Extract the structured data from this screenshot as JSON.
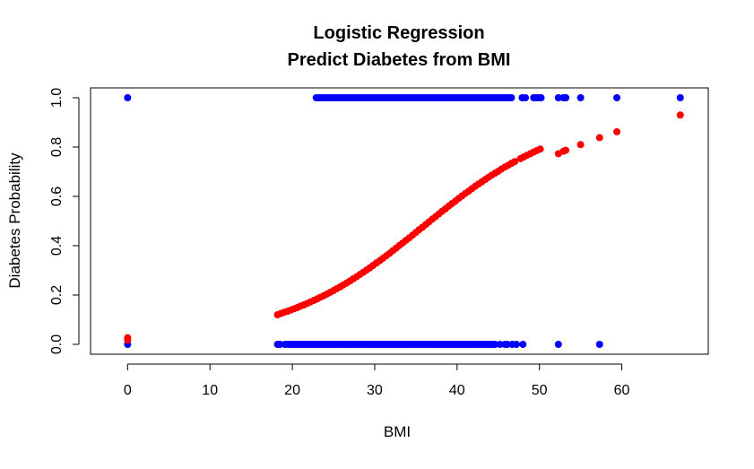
{
  "chart_data": {
    "type": "scatter",
    "title": "Logistic Regression",
    "subtitle": "Predict Diabetes from BMI",
    "xlabel": "BMI",
    "ylabel": "Diabetes Probability",
    "xlim": [
      -4.5,
      70.5
    ],
    "ylim": [
      -0.04,
      1.04
    ],
    "x_ticks": [
      0,
      10,
      20,
      30,
      40,
      50,
      60
    ],
    "x_tick_labels": [
      "0",
      "10",
      "20",
      "30",
      "40",
      "50",
      "60"
    ],
    "y_ticks": [
      0.0,
      0.2,
      0.4,
      0.6,
      0.8,
      1.0
    ],
    "y_tick_labels": [
      "0.0",
      "0.2",
      "0.4",
      "0.6",
      "0.8",
      "1.0"
    ],
    "grid": false,
    "legend": "none",
    "series": [
      {
        "color": "#0000ff",
        "x": [
          0,
          22.9,
          23.2,
          23.5,
          23.8,
          24.1,
          24.4,
          24.7,
          25.0,
          25.3,
          25.6,
          25.9,
          26.2,
          26.5,
          26.8,
          27.1,
          27.4,
          27.7,
          28.0,
          28.3,
          28.6,
          28.9,
          29.2,
          29.5,
          29.8,
          30.1,
          30.4,
          30.7,
          31.0,
          31.3,
          31.6,
          31.9,
          32.2,
          32.5,
          32.8,
          33.1,
          33.4,
          33.7,
          34.0,
          34.3,
          34.6,
          34.9,
          35.2,
          35.5,
          35.8,
          36.1,
          36.4,
          36.7,
          37.0,
          37.3,
          37.6,
          37.9,
          38.2,
          38.5,
          38.8,
          39.1,
          39.4,
          39.7,
          40.0,
          40.3,
          40.6,
          40.9,
          41.2,
          41.5,
          41.8,
          42.1,
          42.4,
          42.7,
          43.0,
          43.3,
          43.6,
          43.9,
          44.2,
          44.5,
          44.8,
          45.1,
          45.4,
          45.7,
          46.0,
          46.3,
          46.6,
          47.9,
          48.3,
          49.3,
          49.6,
          49.9,
          50.2,
          52.3,
          52.9,
          53.2,
          55.0,
          59.4,
          67.1
        ],
        "y": [
          1,
          1,
          1,
          1,
          1,
          1,
          1,
          1,
          1,
          1,
          1,
          1,
          1,
          1,
          1,
          1,
          1,
          1,
          1,
          1,
          1,
          1,
          1,
          1,
          1,
          1,
          1,
          1,
          1,
          1,
          1,
          1,
          1,
          1,
          1,
          1,
          1,
          1,
          1,
          1,
          1,
          1,
          1,
          1,
          1,
          1,
          1,
          1,
          1,
          1,
          1,
          1,
          1,
          1,
          1,
          1,
          1,
          1,
          1,
          1,
          1,
          1,
          1,
          1,
          1,
          1,
          1,
          1,
          1,
          1,
          1,
          1,
          1,
          1,
          1,
          1,
          1,
          1,
          1,
          1,
          1,
          1,
          1,
          1,
          1,
          1,
          1,
          1,
          1,
          1,
          1,
          1,
          1
        ]
      },
      {
        "color": "#0000ff",
        "x": [
          0,
          18.2,
          18.5,
          19.1,
          19.4,
          19.7,
          20.0,
          20.3,
          20.6,
          20.9,
          21.2,
          21.5,
          21.8,
          22.1,
          22.4,
          22.7,
          23.0,
          23.3,
          23.6,
          23.9,
          24.2,
          24.5,
          24.8,
          25.1,
          25.4,
          25.7,
          26.0,
          26.3,
          26.6,
          26.9,
          27.2,
          27.5,
          27.8,
          28.1,
          28.4,
          28.7,
          29.0,
          29.3,
          29.6,
          29.9,
          30.2,
          30.5,
          30.8,
          31.1,
          31.4,
          31.7,
          32.0,
          32.3,
          32.6,
          32.9,
          33.2,
          33.5,
          33.8,
          34.1,
          34.4,
          34.7,
          35.0,
          35.3,
          35.6,
          35.9,
          36.2,
          36.5,
          36.8,
          37.1,
          37.4,
          37.7,
          38.0,
          38.3,
          38.6,
          38.9,
          39.2,
          39.5,
          39.8,
          40.1,
          40.4,
          40.7,
          41.0,
          41.3,
          41.6,
          41.9,
          42.2,
          42.5,
          42.8,
          43.1,
          43.4,
          43.7,
          44.0,
          44.3,
          44.6,
          45.2,
          45.8,
          46.1,
          46.7,
          47.2,
          48.0,
          52.3,
          57.3
        ],
        "y": [
          0,
          0,
          0,
          0,
          0,
          0,
          0,
          0,
          0,
          0,
          0,
          0,
          0,
          0,
          0,
          0,
          0,
          0,
          0,
          0,
          0,
          0,
          0,
          0,
          0,
          0,
          0,
          0,
          0,
          0,
          0,
          0,
          0,
          0,
          0,
          0,
          0,
          0,
          0,
          0,
          0,
          0,
          0,
          0,
          0,
          0,
          0,
          0,
          0,
          0,
          0,
          0,
          0,
          0,
          0,
          0,
          0,
          0,
          0,
          0,
          0,
          0,
          0,
          0,
          0,
          0,
          0,
          0,
          0,
          0,
          0,
          0,
          0,
          0,
          0,
          0,
          0,
          0,
          0,
          0,
          0,
          0,
          0,
          0,
          0,
          0,
          0,
          0,
          0,
          0,
          0,
          0,
          0,
          0,
          0,
          0,
          0
        ]
      },
      {
        "color": "#ff0000",
        "x": [
          0,
          0,
          18.2,
          18.6,
          19.0,
          19.4,
          19.8,
          20.2,
          20.6,
          21.0,
          21.4,
          21.8,
          22.2,
          22.6,
          23.0,
          23.4,
          23.8,
          24.2,
          24.6,
          25.0,
          25.4,
          25.8,
          26.2,
          26.6,
          27.0,
          27.4,
          27.8,
          28.2,
          28.6,
          29.0,
          29.4,
          29.8,
          30.2,
          30.6,
          31.0,
          31.4,
          31.8,
          32.2,
          32.6,
          33.0,
          33.4,
          33.8,
          34.2,
          34.6,
          35.0,
          35.4,
          35.8,
          36.2,
          36.6,
          37.0,
          37.4,
          37.8,
          38.2,
          38.6,
          39.0,
          39.4,
          39.8,
          40.2,
          40.6,
          41.0,
          41.4,
          41.8,
          42.2,
          42.6,
          43.0,
          43.4,
          43.8,
          44.2,
          44.6,
          45.0,
          45.4,
          45.8,
          46.2,
          46.6,
          47.0,
          47.7,
          48.1,
          48.5,
          48.9,
          49.3,
          49.7,
          50.1,
          52.3,
          52.9,
          53.2,
          55.0,
          57.3,
          59.4,
          67.1
        ],
        "y": [
          0.027,
          0.017,
          0.12,
          0.125,
          0.13,
          0.134,
          0.139,
          0.144,
          0.149,
          0.155,
          0.16,
          0.166,
          0.172,
          0.178,
          0.184,
          0.191,
          0.197,
          0.204,
          0.211,
          0.218,
          0.226,
          0.233,
          0.241,
          0.249,
          0.257,
          0.266,
          0.274,
          0.283,
          0.292,
          0.301,
          0.31,
          0.32,
          0.33,
          0.339,
          0.349,
          0.359,
          0.369,
          0.38,
          0.39,
          0.401,
          0.411,
          0.422,
          0.432,
          0.443,
          0.454,
          0.465,
          0.475,
          0.486,
          0.497,
          0.508,
          0.518,
          0.529,
          0.54,
          0.55,
          0.561,
          0.571,
          0.581,
          0.592,
          0.602,
          0.612,
          0.621,
          0.631,
          0.641,
          0.65,
          0.659,
          0.668,
          0.677,
          0.686,
          0.694,
          0.702,
          0.711,
          0.719,
          0.726,
          0.734,
          0.741,
          0.753,
          0.76,
          0.767,
          0.773,
          0.78,
          0.786,
          0.792,
          0.773,
          0.783,
          0.787,
          0.81,
          0.838,
          0.862,
          0.93
        ]
      }
    ]
  }
}
